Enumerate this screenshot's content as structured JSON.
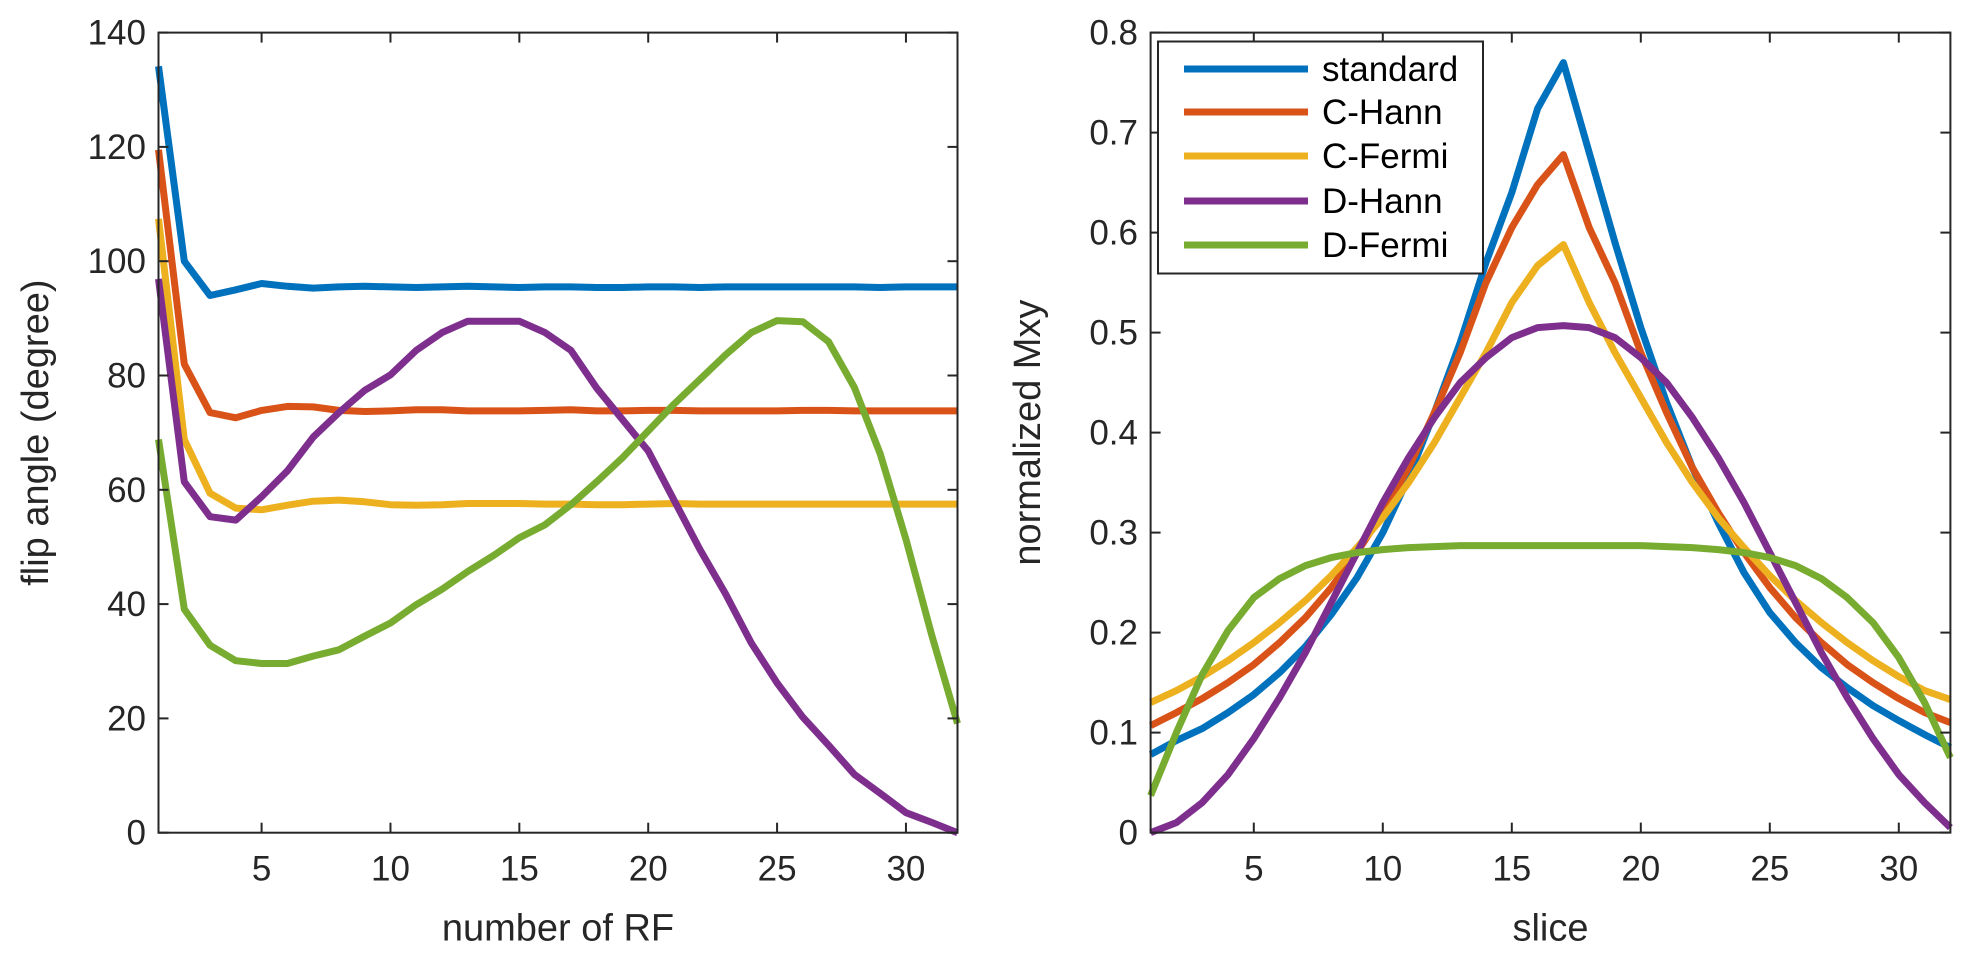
{
  "chart_data": [
    {
      "type": "line",
      "xlabel": "number of RF",
      "ylabel": "flip angle (degree)",
      "xlim": [
        1,
        32
      ],
      "ylim": [
        0,
        140
      ],
      "xticks": [
        5,
        10,
        15,
        20,
        25,
        30
      ],
      "yticks": [
        0,
        20,
        40,
        60,
        80,
        100,
        120,
        140
      ],
      "grid": false,
      "x": [
        1,
        2,
        3,
        4,
        5,
        6,
        7,
        8,
        9,
        10,
        11,
        12,
        13,
        14,
        15,
        16,
        17,
        18,
        19,
        20,
        21,
        22,
        23,
        24,
        25,
        26,
        27,
        28,
        29,
        30,
        31,
        32
      ],
      "series": [
        {
          "name": "standard",
          "color": "#0072BD",
          "values": [
            134.1,
            100,
            94,
            95,
            96.1,
            95.6,
            95.3,
            95.5,
            95.6,
            95.5,
            95.4,
            95.5,
            95.6,
            95.5,
            95.4,
            95.5,
            95.5,
            95.4,
            95.4,
            95.5,
            95.5,
            95.4,
            95.5,
            95.5,
            95.5,
            95.5,
            95.5,
            95.5,
            95.4,
            95.5,
            95.5,
            95.5
          ]
        },
        {
          "name": "C-Hann",
          "color": "#D95319",
          "values": [
            119.5,
            82,
            73.5,
            72.6,
            73.9,
            74.6,
            74.5,
            73.9,
            73.7,
            73.8,
            74,
            74,
            73.8,
            73.8,
            73.8,
            73.9,
            74,
            73.8,
            73.8,
            73.9,
            73.9,
            73.8,
            73.8,
            73.8,
            73.8,
            73.9,
            73.9,
            73.8,
            73.8,
            73.8,
            73.8,
            73.8
          ]
        },
        {
          "name": "C-Fermi",
          "color": "#EDB120",
          "values": [
            107.4,
            68.8,
            59.4,
            56.8,
            56.5,
            57.3,
            58,
            58.2,
            57.9,
            57.4,
            57.3,
            57.4,
            57.6,
            57.6,
            57.6,
            57.5,
            57.5,
            57.4,
            57.4,
            57.5,
            57.6,
            57.5,
            57.5,
            57.5,
            57.5,
            57.5,
            57.5,
            57.5,
            57.5,
            57.5,
            57.5,
            57.5
          ]
        },
        {
          "name": "D-Hann",
          "color": "#7E2F8E",
          "values": [
            96.9,
            61.4,
            55.3,
            54.7,
            58.8,
            63.3,
            69.2,
            73.5,
            77.4,
            80.1,
            84.4,
            87.5,
            89.5,
            89.5,
            89.5,
            87.5,
            84.4,
            77.8,
            72.3,
            66.8,
            58.2,
            49.6,
            41.8,
            33.2,
            26.2,
            20.2,
            15.3,
            10.2,
            6.9,
            3.5,
            1.8,
            0
          ]
        },
        {
          "name": "D-Fermi",
          "color": "#77AC30",
          "values": [
            68.8,
            39.1,
            32.8,
            30.1,
            29.6,
            29.6,
            30.9,
            32,
            34.4,
            36.7,
            39.9,
            42.6,
            45.7,
            48.5,
            51.6,
            53.9,
            57.4,
            61.4,
            65.6,
            70.3,
            75,
            79.3,
            83.6,
            87.5,
            89.6,
            89.4,
            85.9,
            77.9,
            66.3,
            51.3,
            34.6,
            19.1
          ]
        }
      ]
    },
    {
      "type": "line",
      "xlabel": "slice",
      "ylabel": "normalized Mxy",
      "xlim": [
        1,
        32
      ],
      "ylim": [
        0,
        0.8
      ],
      "xticks": [
        5,
        10,
        15,
        20,
        25,
        30
      ],
      "yticks": [
        0,
        0.1,
        0.2,
        0.3,
        0.4,
        0.5,
        0.6,
        0.7,
        0.8
      ],
      "grid": false,
      "legend": "top-left",
      "x": [
        1,
        2,
        3,
        4,
        5,
        6,
        7,
        8,
        9,
        10,
        11,
        12,
        13,
        14,
        15,
        16,
        17,
        18,
        19,
        20,
        21,
        22,
        23,
        24,
        25,
        26,
        27,
        28,
        29,
        30,
        31,
        32
      ],
      "series": [
        {
          "name": "standard",
          "color": "#0072BD",
          "values": [
            0.078,
            0.092,
            0.104,
            0.12,
            0.138,
            0.16,
            0.186,
            0.218,
            0.255,
            0.3,
            0.355,
            0.42,
            0.49,
            0.57,
            0.64,
            0.724,
            0.77,
            0.68,
            0.59,
            0.505,
            0.43,
            0.365,
            0.31,
            0.26,
            0.22,
            0.19,
            0.165,
            0.145,
            0.127,
            0.112,
            0.098,
            0.085
          ]
        },
        {
          "name": "C-Hann",
          "color": "#D95319",
          "values": [
            0.107,
            0.12,
            0.134,
            0.15,
            0.168,
            0.19,
            0.215,
            0.245,
            0.28,
            0.32,
            0.365,
            0.42,
            0.48,
            0.55,
            0.605,
            0.648,
            0.678,
            0.605,
            0.55,
            0.48,
            0.42,
            0.365,
            0.32,
            0.28,
            0.245,
            0.215,
            0.19,
            0.168,
            0.15,
            0.134,
            0.12,
            0.11
          ]
        },
        {
          "name": "C-Fermi",
          "color": "#EDB120",
          "values": [
            0.13,
            0.142,
            0.156,
            0.172,
            0.19,
            0.21,
            0.232,
            0.257,
            0.285,
            0.315,
            0.35,
            0.39,
            0.435,
            0.48,
            0.53,
            0.567,
            0.588,
            0.53,
            0.48,
            0.435,
            0.39,
            0.35,
            0.315,
            0.285,
            0.257,
            0.232,
            0.21,
            0.19,
            0.172,
            0.156,
            0.142,
            0.133
          ]
        },
        {
          "name": "D-Hann",
          "color": "#7E2F8E",
          "values": [
            0,
            0.01,
            0.03,
            0.058,
            0.094,
            0.135,
            0.18,
            0.23,
            0.28,
            0.33,
            0.375,
            0.415,
            0.45,
            0.475,
            0.495,
            0.505,
            0.507,
            0.505,
            0.495,
            0.475,
            0.45,
            0.415,
            0.375,
            0.33,
            0.28,
            0.23,
            0.18,
            0.135,
            0.094,
            0.058,
            0.03,
            0.005
          ]
        },
        {
          "name": "D-Fermi",
          "color": "#77AC30",
          "values": [
            0.037,
            0.1,
            0.158,
            0.202,
            0.235,
            0.254,
            0.267,
            0.275,
            0.28,
            0.283,
            0.285,
            0.286,
            0.287,
            0.287,
            0.287,
            0.287,
            0.287,
            0.287,
            0.287,
            0.287,
            0.286,
            0.285,
            0.283,
            0.28,
            0.275,
            0.267,
            0.254,
            0.235,
            0.21,
            0.175,
            0.13,
            0.075
          ]
        }
      ]
    }
  ]
}
